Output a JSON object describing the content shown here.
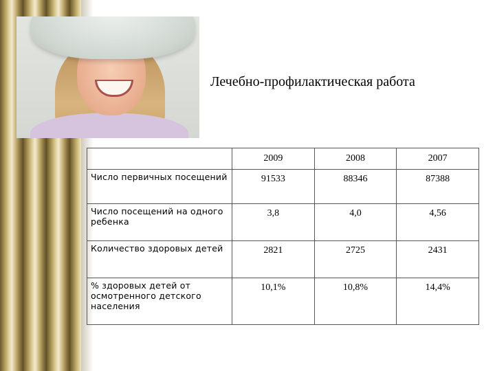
{
  "slide": {
    "title": "Лечебно-профилактическая работа",
    "image": "smiling-girl-in-hat-photo"
  },
  "table": {
    "corner": "",
    "columns": [
      "2009",
      "2008",
      "2007"
    ],
    "rows": [
      {
        "label": "Число первичных посещений",
        "values": [
          "91533",
          "88346",
          "87388"
        ]
      },
      {
        "label": "Число посещений на одного ребенка",
        "values": [
          "3,8",
          "4,0",
          "4,56"
        ]
      },
      {
        "label": "Количество здоровых детей",
        "values": [
          "2821",
          "2725",
          "2431"
        ]
      },
      {
        "label": "% здоровых детей от осмотренного детского населения",
        "values": [
          "10,1%",
          "10,8%",
          "14,4%"
        ]
      }
    ]
  },
  "colors": {
    "stripe_gold": "#c8b377",
    "stripe_dark": "#5d4d25",
    "border": "#555555"
  }
}
